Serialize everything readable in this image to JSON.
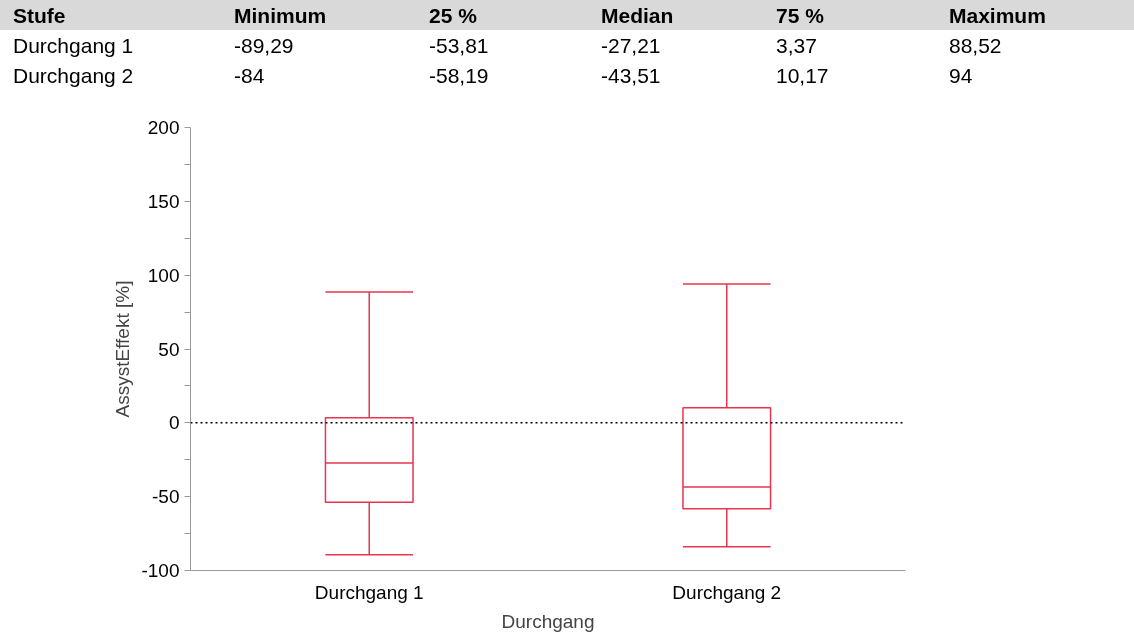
{
  "chart_data": {
    "type": "box",
    "xlabel": "Durchgang",
    "ylabel": "AssystEffekt [%]",
    "categories": [
      "Durchgang 1",
      "Durchgang 2"
    ],
    "series": [
      {
        "color": "#e8344e",
        "boxes": [
          {
            "low": -89.29,
            "q1": -53.81,
            "median": -27.21,
            "q3": 3.37,
            "high": 88.52
          },
          {
            "low": -84,
            "q1": -58.19,
            "median": -43.51,
            "q3": 10.17,
            "high": 94
          }
        ],
        "value_labels": [
          [
            "-89,29",
            "-53,81",
            "-27,21",
            "3,37",
            "88,52"
          ],
          [
            "-84",
            "-58,19",
            "-43,51",
            "10,17",
            "94"
          ]
        ]
      }
    ],
    "ylim": [
      -100,
      200
    ],
    "yticks": [
      -100,
      {
        "value": -75,
        "label": null
      },
      -50,
      {
        "value": -25,
        "label": null
      },
      0,
      {
        "value": 25,
        "label": null
      },
      50,
      {
        "value": 75,
        "label": null
      },
      100,
      {
        "value": 125,
        "label": null
      },
      150,
      {
        "value": 175,
        "label": null
      },
      200
    ],
    "ref_lines": [
      {
        "axis": "y",
        "value": 0,
        "color": "#000000",
        "line_style": "dotted"
      }
    ],
    "annotations": [
      "Stufe",
      "Minimum",
      "25 %",
      "Median",
      "75 %",
      "Maximum"
    ],
    "grid": false
  }
}
